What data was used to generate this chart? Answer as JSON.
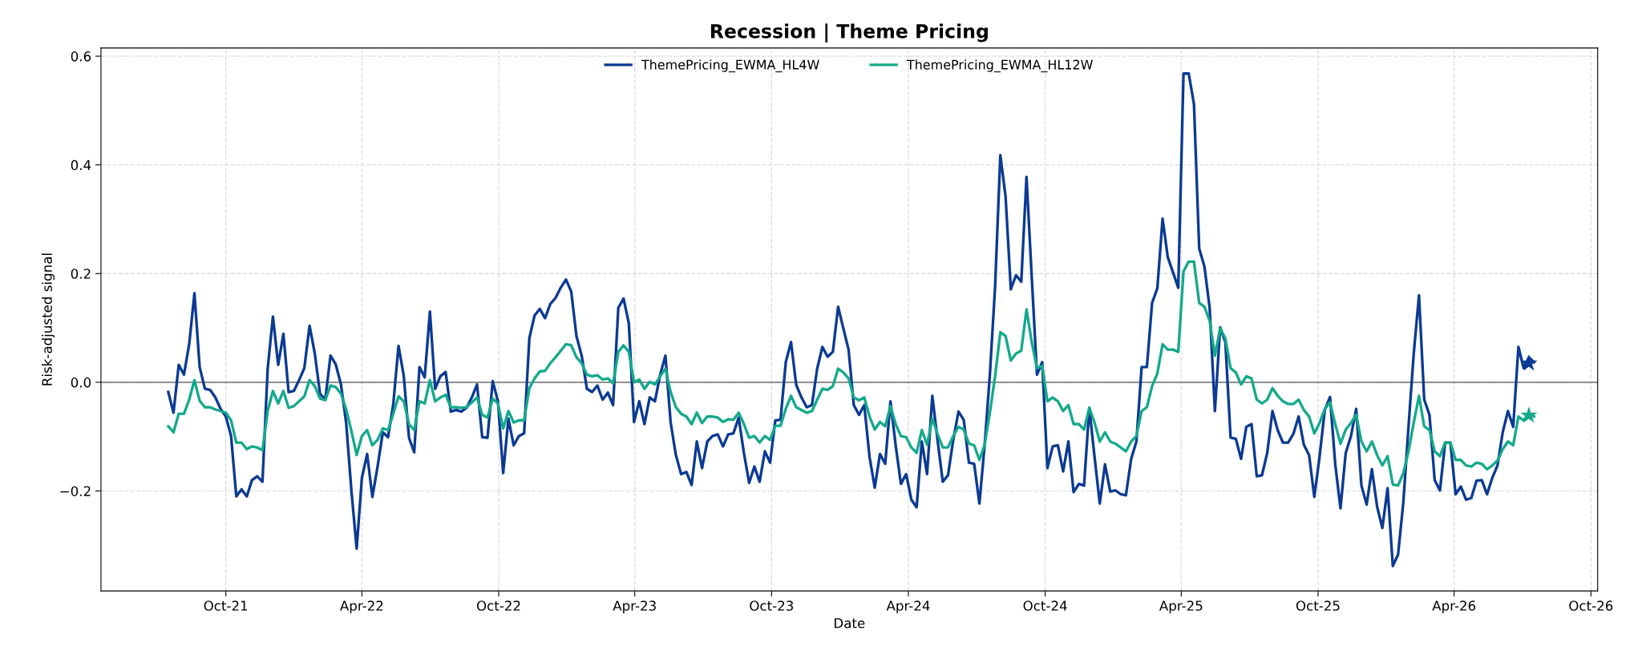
{
  "chart_data": {
    "type": "line",
    "title": "Recession | Theme Pricing",
    "xlabel": "Date",
    "ylabel": "Risk-adjusted signal",
    "x": [
      "2021-07-16",
      "2021-07-23",
      "2021-07-30",
      "2021-08-06",
      "2021-08-13",
      "2021-08-20",
      "2021-08-27",
      "2021-09-03",
      "2021-09-10",
      "2021-09-17",
      "2021-09-24",
      "2021-10-01",
      "2021-10-08",
      "2021-10-15",
      "2021-10-22",
      "2021-10-29",
      "2021-11-05",
      "2021-11-12",
      "2021-11-19",
      "2021-11-26",
      "2021-12-03",
      "2021-12-10",
      "2021-12-17",
      "2021-12-24",
      "2021-12-31",
      "2022-01-07",
      "2022-01-14",
      "2022-01-21",
      "2022-01-28",
      "2022-02-04",
      "2022-02-11",
      "2022-02-18",
      "2022-02-25",
      "2022-03-04",
      "2022-03-11",
      "2022-03-18",
      "2022-03-25",
      "2022-04-01",
      "2022-04-08",
      "2022-04-15",
      "2022-04-22",
      "2022-04-29",
      "2022-05-06",
      "2022-05-13",
      "2022-05-20",
      "2022-05-27",
      "2022-06-03",
      "2022-06-10",
      "2022-06-17",
      "2022-06-24",
      "2022-07-01",
      "2022-07-08",
      "2022-07-15",
      "2022-07-22",
      "2022-07-29",
      "2022-08-05",
      "2022-08-12",
      "2022-08-19",
      "2022-08-26",
      "2022-09-02",
      "2022-09-09",
      "2022-09-16",
      "2022-09-23",
      "2022-09-30",
      "2022-10-07",
      "2022-10-14",
      "2022-10-21",
      "2022-10-28",
      "2022-11-04",
      "2022-11-11",
      "2022-11-18",
      "2022-11-25",
      "2022-12-02",
      "2022-12-09",
      "2022-12-16",
      "2022-12-23",
      "2022-12-30",
      "2023-01-06",
      "2023-01-13",
      "2023-01-20",
      "2023-01-27",
      "2023-02-03",
      "2023-02-10",
      "2023-02-17",
      "2023-02-24",
      "2023-03-03",
      "2023-03-10",
      "2023-03-17",
      "2023-03-24",
      "2023-03-31",
      "2023-04-07",
      "2023-04-14",
      "2023-04-21",
      "2023-04-28",
      "2023-05-05",
      "2023-05-12",
      "2023-05-19",
      "2023-05-26",
      "2023-06-02",
      "2023-06-09",
      "2023-06-16",
      "2023-06-23",
      "2023-06-30",
      "2023-07-07",
      "2023-07-14",
      "2023-07-21",
      "2023-07-28",
      "2023-08-04",
      "2023-08-11",
      "2023-08-18",
      "2023-08-25",
      "2023-09-01",
      "2023-09-08",
      "2023-09-15",
      "2023-09-22",
      "2023-09-29",
      "2023-10-06",
      "2023-10-13",
      "2023-10-20",
      "2023-10-27",
      "2023-11-03",
      "2023-11-10",
      "2023-11-17",
      "2023-11-24",
      "2023-12-01",
      "2023-12-08",
      "2023-12-15",
      "2023-12-22",
      "2023-12-29",
      "2024-01-05",
      "2024-01-12",
      "2024-01-19",
      "2024-01-26",
      "2024-02-02",
      "2024-02-09",
      "2024-02-16",
      "2024-02-23",
      "2024-03-01",
      "2024-03-08",
      "2024-03-15",
      "2024-03-22",
      "2024-03-29",
      "2024-04-05",
      "2024-04-12",
      "2024-04-19",
      "2024-04-26",
      "2024-05-03",
      "2024-05-10",
      "2024-05-17",
      "2024-05-24",
      "2024-05-31",
      "2024-06-07",
      "2024-06-14",
      "2024-06-21",
      "2024-06-28",
      "2024-07-05",
      "2024-07-12",
      "2024-07-19",
      "2024-07-26",
      "2024-08-02",
      "2024-08-09",
      "2024-08-16",
      "2024-08-23",
      "2024-08-30",
      "2024-09-06",
      "2024-09-13",
      "2024-09-20",
      "2024-09-27",
      "2024-10-04",
      "2024-10-11",
      "2024-10-18",
      "2024-10-25",
      "2024-11-01",
      "2024-11-08",
      "2024-11-15",
      "2024-11-22",
      "2024-11-29",
      "2024-12-06",
      "2024-12-13",
      "2024-12-20",
      "2024-12-27",
      "2025-01-03",
      "2025-01-10",
      "2025-01-17",
      "2025-01-24",
      "2025-01-31",
      "2025-02-07",
      "2025-02-14",
      "2025-02-21",
      "2025-02-28",
      "2025-03-07",
      "2025-03-14",
      "2025-03-21",
      "2025-03-28",
      "2025-04-04",
      "2025-04-11",
      "2025-04-18",
      "2025-04-25",
      "2025-05-02",
      "2025-05-09",
      "2025-05-16",
      "2025-05-23",
      "2025-05-30",
      "2025-06-06",
      "2025-06-13",
      "2025-06-20",
      "2025-06-27",
      "2025-07-04",
      "2025-07-11",
      "2025-07-18",
      "2025-07-25",
      "2025-08-01",
      "2025-08-08",
      "2025-08-15",
      "2025-08-22",
      "2025-08-29",
      "2025-09-05",
      "2025-09-12",
      "2025-09-19",
      "2025-09-26",
      "2025-10-03",
      "2025-10-10",
      "2025-10-17",
      "2025-10-24",
      "2025-10-31",
      "2025-11-07",
      "2025-11-14",
      "2025-11-21",
      "2025-11-28",
      "2025-12-05",
      "2025-12-12",
      "2025-12-19",
      "2025-12-26",
      "2026-01-02",
      "2026-01-09",
      "2026-01-16",
      "2026-01-23",
      "2026-01-30",
      "2026-02-06",
      "2026-02-13",
      "2026-02-20",
      "2026-02-27",
      "2026-03-06",
      "2026-03-13",
      "2026-03-20",
      "2026-03-27",
      "2026-04-03",
      "2026-04-10",
      "2026-04-17",
      "2026-04-24",
      "2026-05-01",
      "2026-05-08",
      "2026-05-15",
      "2026-05-22",
      "2026-05-29",
      "2026-06-05",
      "2026-06-12",
      "2026-06-19",
      "2026-06-26",
      "2026-07-03",
      "2026-07-10",
      "2026-07-17"
    ],
    "series": [
      {
        "name": "ThemePricing_EWMA_HL4W",
        "color": "#0b3a93",
        "values": [
          -0.018,
          -0.056,
          0.032,
          0.014,
          0.07,
          0.164,
          0.028,
          -0.012,
          -0.014,
          -0.028,
          -0.049,
          -0.063,
          -0.099,
          -0.21,
          -0.197,
          -0.21,
          -0.18,
          -0.173,
          -0.183,
          0.025,
          0.121,
          0.032,
          0.089,
          -0.018,
          -0.016,
          0.004,
          0.026,
          0.104,
          0.053,
          -0.021,
          -0.032,
          0.049,
          0.033,
          -0.004,
          -0.075,
          -0.2,
          -0.306,
          -0.176,
          -0.132,
          -0.211,
          -0.155,
          -0.092,
          -0.101,
          -0.04,
          0.067,
          0.012,
          -0.102,
          -0.129,
          0.028,
          0.009,
          0.13,
          -0.012,
          0.011,
          0.019,
          -0.054,
          -0.051,
          -0.054,
          -0.047,
          -0.028,
          -0.004,
          -0.101,
          -0.102,
          0.002,
          -0.035,
          -0.167,
          -0.067,
          -0.116,
          -0.099,
          -0.094,
          0.081,
          0.123,
          0.135,
          0.118,
          0.144,
          0.155,
          0.174,
          0.189,
          0.167,
          0.085,
          0.049,
          -0.012,
          -0.018,
          -0.006,
          -0.032,
          -0.019,
          -0.042,
          0.137,
          0.154,
          0.109,
          -0.073,
          -0.035,
          -0.077,
          -0.028,
          -0.035,
          0.014,
          0.049,
          -0.074,
          -0.134,
          -0.169,
          -0.165,
          -0.189,
          -0.109,
          -0.158,
          -0.109,
          -0.099,
          -0.096,
          -0.118,
          -0.096,
          -0.094,
          -0.065,
          -0.13,
          -0.185,
          -0.155,
          -0.183,
          -0.127,
          -0.148,
          -0.07,
          -0.069,
          0.037,
          0.074,
          -0.005,
          -0.028,
          -0.046,
          -0.042,
          0.025,
          0.065,
          0.047,
          0.056,
          0.139,
          0.099,
          0.06,
          -0.042,
          -0.06,
          -0.042,
          -0.137,
          -0.194,
          -0.132,
          -0.15,
          -0.035,
          -0.116,
          -0.187,
          -0.169,
          -0.216,
          -0.23,
          -0.109,
          -0.169,
          -0.025,
          -0.106,
          -0.183,
          -0.171,
          -0.106,
          -0.054,
          -0.069,
          -0.148,
          -0.15,
          -0.223,
          -0.116,
          0.014,
          0.176,
          0.418,
          0.342,
          0.171,
          0.197,
          0.185,
          0.378,
          0.194,
          0.014,
          0.037,
          -0.158,
          -0.118,
          -0.116,
          -0.164,
          -0.109,
          -0.202,
          -0.187,
          -0.19,
          -0.047,
          -0.137,
          -0.223,
          -0.151,
          -0.201,
          -0.199,
          -0.206,
          -0.208,
          -0.141,
          -0.109,
          0.028,
          0.028,
          0.146,
          0.173,
          0.301,
          0.23,
          0.202,
          0.174,
          0.568,
          0.568,
          0.512,
          0.246,
          0.213,
          0.137,
          -0.053,
          0.101,
          0.074,
          -0.102,
          -0.104,
          -0.141,
          -0.082,
          -0.077,
          -0.173,
          -0.171,
          -0.13,
          -0.053,
          -0.088,
          -0.111,
          -0.111,
          -0.095,
          -0.063,
          -0.115,
          -0.134,
          -0.211,
          -0.137,
          -0.051,
          -0.027,
          -0.151,
          -0.232,
          -0.13,
          -0.099,
          -0.049,
          -0.19,
          -0.225,
          -0.16,
          -0.229,
          -0.268,
          -0.195,
          -0.338,
          -0.317,
          -0.222,
          -0.081,
          0.053,
          0.16,
          -0.032,
          -0.06,
          -0.18,
          -0.199,
          -0.111,
          -0.111,
          -0.206,
          -0.192,
          -0.216,
          -0.213,
          -0.181,
          -0.18,
          -0.206,
          -0.176,
          -0.153,
          -0.092,
          -0.053,
          -0.082,
          0.065,
          0.026,
          0.046,
          0.037
        ]
      },
      {
        "name": "ThemePricing_EWMA_HL12W",
        "color": "#14a98b",
        "values": [
          -0.081,
          -0.092,
          -0.058,
          -0.058,
          -0.032,
          0.004,
          -0.034,
          -0.046,
          -0.046,
          -0.05,
          -0.053,
          -0.056,
          -0.07,
          -0.111,
          -0.111,
          -0.123,
          -0.118,
          -0.12,
          -0.125,
          -0.053,
          -0.016,
          -0.039,
          -0.016,
          -0.047,
          -0.044,
          -0.035,
          -0.026,
          0.004,
          -0.007,
          -0.03,
          -0.033,
          -0.006,
          -0.009,
          -0.021,
          -0.05,
          -0.09,
          -0.134,
          -0.099,
          -0.088,
          -0.116,
          -0.106,
          -0.085,
          -0.088,
          -0.058,
          -0.026,
          -0.035,
          -0.077,
          -0.088,
          -0.035,
          -0.039,
          0.004,
          -0.035,
          -0.028,
          -0.023,
          -0.046,
          -0.046,
          -0.047,
          -0.046,
          -0.037,
          -0.028,
          -0.06,
          -0.065,
          -0.03,
          -0.039,
          -0.085,
          -0.053,
          -0.074,
          -0.07,
          -0.07,
          -0.011,
          0.007,
          0.02,
          0.021,
          0.035,
          0.046,
          0.058,
          0.07,
          0.068,
          0.046,
          0.035,
          0.014,
          0.011,
          0.013,
          0.005,
          0.007,
          -0.002,
          0.056,
          0.068,
          0.056,
          0.0,
          0.005,
          -0.012,
          0.001,
          -0.004,
          0.011,
          0.025,
          -0.018,
          -0.046,
          -0.058,
          -0.063,
          -0.077,
          -0.056,
          -0.075,
          -0.063,
          -0.063,
          -0.065,
          -0.073,
          -0.068,
          -0.069,
          -0.056,
          -0.077,
          -0.102,
          -0.099,
          -0.111,
          -0.099,
          -0.106,
          -0.08,
          -0.08,
          -0.049,
          -0.025,
          -0.046,
          -0.051,
          -0.056,
          -0.053,
          -0.032,
          -0.012,
          -0.014,
          -0.007,
          0.025,
          0.018,
          0.007,
          -0.028,
          -0.033,
          -0.028,
          -0.063,
          -0.087,
          -0.073,
          -0.081,
          -0.044,
          -0.077,
          -0.099,
          -0.101,
          -0.12,
          -0.13,
          -0.088,
          -0.115,
          -0.067,
          -0.095,
          -0.12,
          -0.12,
          -0.099,
          -0.082,
          -0.087,
          -0.113,
          -0.116,
          -0.143,
          -0.115,
          -0.056,
          0.011,
          0.092,
          0.085,
          0.04,
          0.053,
          0.058,
          0.134,
          0.074,
          0.026,
          0.03,
          -0.035,
          -0.028,
          -0.035,
          -0.053,
          -0.042,
          -0.077,
          -0.077,
          -0.087,
          -0.047,
          -0.074,
          -0.109,
          -0.092,
          -0.109,
          -0.113,
          -0.12,
          -0.127,
          -0.109,
          -0.099,
          -0.053,
          -0.046,
          -0.007,
          0.016,
          0.07,
          0.06,
          0.06,
          0.056,
          0.204,
          0.222,
          0.222,
          0.146,
          0.139,
          0.113,
          0.049,
          0.099,
          0.081,
          0.026,
          0.018,
          -0.004,
          0.011,
          0.007,
          -0.032,
          -0.039,
          -0.032,
          -0.011,
          -0.025,
          -0.035,
          -0.04,
          -0.04,
          -0.032,
          -0.051,
          -0.063,
          -0.094,
          -0.075,
          -0.049,
          -0.037,
          -0.077,
          -0.113,
          -0.087,
          -0.075,
          -0.06,
          -0.109,
          -0.127,
          -0.109,
          -0.134,
          -0.153,
          -0.136,
          -0.188,
          -0.19,
          -0.167,
          -0.127,
          -0.074,
          -0.025,
          -0.081,
          -0.088,
          -0.127,
          -0.136,
          -0.111,
          -0.111,
          -0.143,
          -0.143,
          -0.153,
          -0.155,
          -0.148,
          -0.15,
          -0.16,
          -0.153,
          -0.144,
          -0.123,
          -0.109,
          -0.116,
          -0.063,
          -0.07,
          -0.058,
          -0.063
        ]
      },
      {
        "type": "scatter",
        "marker": "star",
        "x": [
          "2026-07-10",
          "2026-07-10"
        ],
        "colors": [
          "#0b3a93",
          "#14a98b"
        ],
        "values": [
          0.035,
          -0.061
        ]
      }
    ],
    "xlim": [
      "2021-04-17",
      "2026-10-10"
    ],
    "xticks": [
      {
        "value": "2021-10-01",
        "label": "Oct-21"
      },
      {
        "value": "2022-04-01",
        "label": "Apr-22"
      },
      {
        "value": "2022-10-01",
        "label": "Oct-22"
      },
      {
        "value": "2023-04-01",
        "label": "Apr-23"
      },
      {
        "value": "2023-10-01",
        "label": "Oct-23"
      },
      {
        "value": "2024-04-01",
        "label": "Apr-24"
      },
      {
        "value": "2024-10-01",
        "label": "Oct-24"
      },
      {
        "value": "2025-04-01",
        "label": "Apr-25"
      },
      {
        "value": "2025-10-01",
        "label": "Oct-25"
      },
      {
        "value": "2026-04-01",
        "label": "Apr-26"
      },
      {
        "value": "2026-10-01",
        "label": "Oct-26"
      }
    ],
    "ylim": [
      -0.384,
      0.615
    ],
    "yticks": [
      {
        "value": -0.2,
        "label": "−0.2"
      },
      {
        "value": 0,
        "label": "0.0"
      },
      {
        "value": 0.2,
        "label": "0.2"
      },
      {
        "value": 0.4,
        "label": "0.4"
      },
      {
        "value": 0.6,
        "label": "0.6"
      }
    ],
    "ref_lines": [
      {
        "axis": "y",
        "value": 0,
        "color": "#808080"
      }
    ],
    "grid": true,
    "legend": "top",
    "line_style": "solid",
    "marker": "none"
  }
}
